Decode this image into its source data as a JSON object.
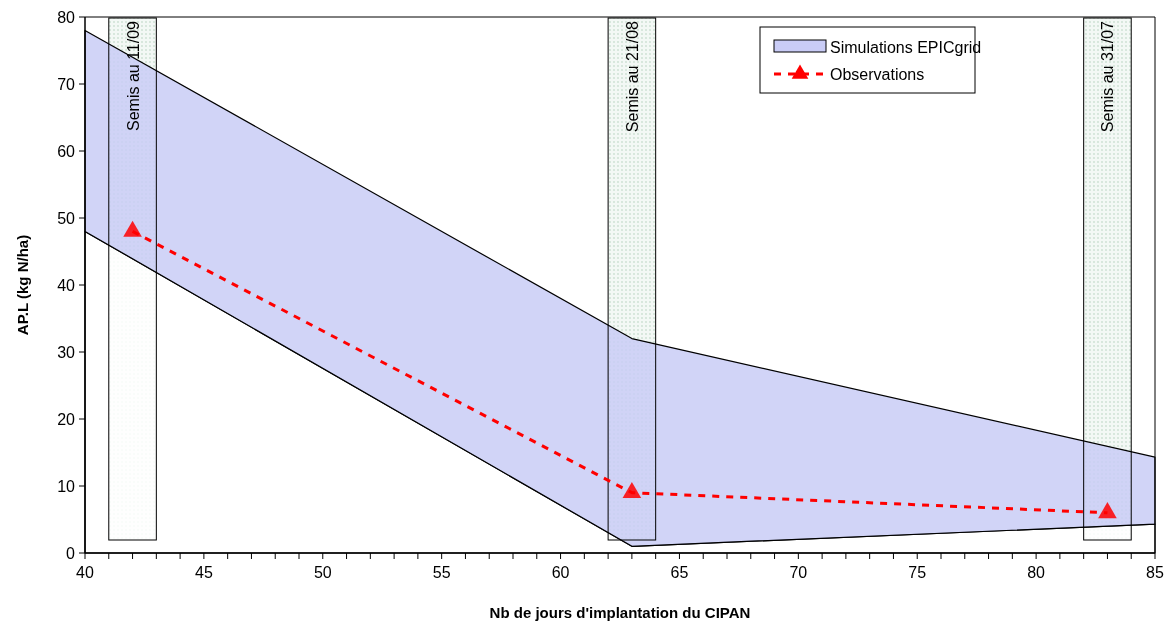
{
  "chart_data": {
    "type": "line",
    "stacked": true,
    "xlabel": "Nb de jours d'implantation du CIPAN",
    "ylabel": "AP.L (kg N/ha)",
    "xlim": [
      40,
      85
    ],
    "xticks": [
      40,
      {
        "value": 41,
        "label": null
      },
      {
        "value": 42,
        "label": null
      },
      {
        "value": 43,
        "label": null
      },
      {
        "value": 44,
        "label": null
      },
      45,
      {
        "value": 46,
        "label": null
      },
      {
        "value": 47,
        "label": null
      },
      {
        "value": 48,
        "label": null
      },
      {
        "value": 49,
        "label": null
      },
      50,
      {
        "value": 51,
        "label": null
      },
      {
        "value": 52,
        "label": null
      },
      {
        "value": 53,
        "label": null
      },
      {
        "value": 54,
        "label": null
      },
      55,
      {
        "value": 56,
        "label": null
      },
      {
        "value": 57,
        "label": null
      },
      {
        "value": 58,
        "label": null
      },
      {
        "value": 59,
        "label": null
      },
      60,
      {
        "value": 61,
        "label": null
      },
      {
        "value": 62,
        "label": null
      },
      {
        "value": 63,
        "label": null
      },
      {
        "value": 64,
        "label": null
      },
      65,
      {
        "value": 66,
        "label": null
      },
      {
        "value": 67,
        "label": null
      },
      {
        "value": 68,
        "label": null
      },
      {
        "value": 69,
        "label": null
      },
      70,
      {
        "value": 71,
        "label": null
      },
      {
        "value": 72,
        "label": null
      },
      {
        "value": 73,
        "label": null
      },
      {
        "value": 74,
        "label": null
      },
      75,
      {
        "value": 76,
        "label": null
      },
      {
        "value": 77,
        "label": null
      },
      {
        "value": 78,
        "label": null
      },
      {
        "value": 79,
        "label": null
      },
      80,
      {
        "value": 81,
        "label": null
      },
      {
        "value": 82,
        "label": null
      },
      {
        "value": 83,
        "label": null
      },
      {
        "value": 84,
        "label": null
      },
      85
    ],
    "ylim": [
      0,
      80
    ],
    "yticks": [
      0,
      10,
      20,
      30,
      40,
      50,
      60,
      70,
      80
    ],
    "grid": false,
    "legend": "top right",
    "series": [
      {
        "type": "area",
        "color": "#ffffff",
        "x": [
          40,
          63,
          85
        ],
        "values": [
          48,
          1,
          4.3
        ]
      },
      {
        "type": "area",
        "name": "Simulations EPICgrid",
        "color": "#c9ccf6",
        "x": [
          40,
          63,
          85
        ],
        "values": [
          30,
          31,
          10
        ]
      },
      {
        "type": "line",
        "name": "Observations",
        "color": "#ff0000",
        "x": [
          42,
          63,
          83
        ],
        "values": [
          48,
          9,
          6
        ],
        "marker": "triangle",
        "line_style": "dashed"
      }
    ],
    "bands": [
      {
        "axis": "x",
        "from": 41,
        "to": 43,
        "label": "Semis au 11/09",
        "color": "#e4efe8"
      },
      {
        "axis": "x",
        "from": 62,
        "to": 64,
        "label": "Semis au 21/08",
        "color": "#e4efe8"
      },
      {
        "axis": "x",
        "from": 82,
        "to": 84,
        "label": "Semis au 31/07",
        "color": "#e4efe8"
      }
    ]
  }
}
